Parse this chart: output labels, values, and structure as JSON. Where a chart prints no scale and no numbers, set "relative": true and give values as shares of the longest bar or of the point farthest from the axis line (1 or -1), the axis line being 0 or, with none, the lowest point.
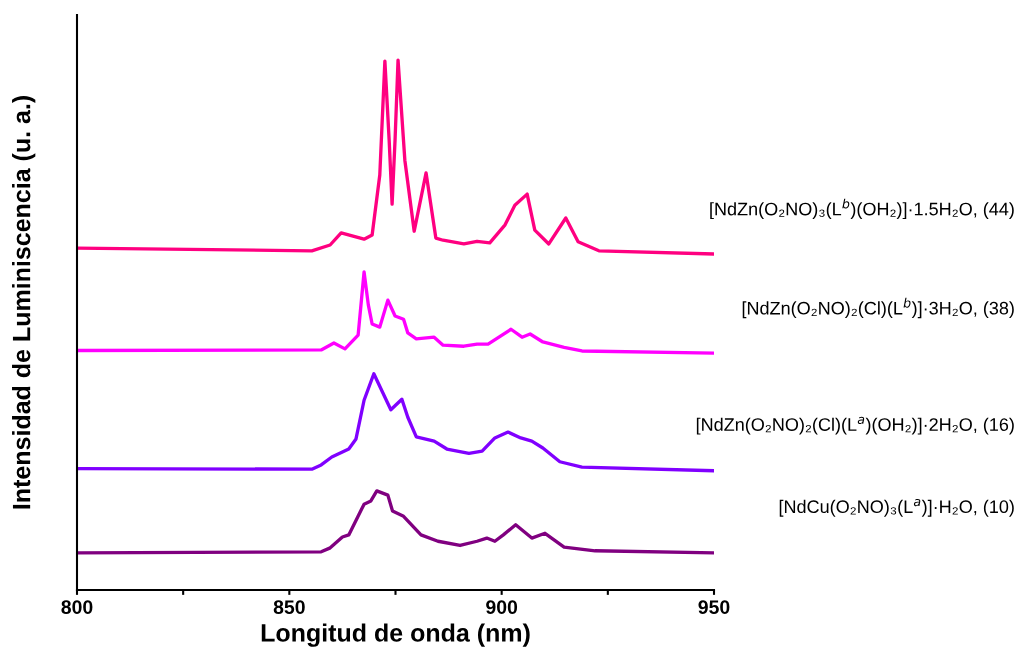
{
  "chart_data": {
    "type": "line",
    "relative": true,
    "xlabel": "Longitud de onda (nm)",
    "ylabel": "Intensidad de Luminiscencia (u. a.)",
    "xlim": [
      800,
      950
    ],
    "xticks": [
      800,
      {
        "value": 825,
        "label": null
      },
      850,
      {
        "value": 875,
        "label": null
      },
      900,
      {
        "value": 925,
        "label": null
      },
      950
    ],
    "tick_labels": "x",
    "grid": false,
    "legend": false,
    "marker": "none",
    "line_style": "solid",
    "series": [
      {
        "name": "[NdZn(O₂NO)₃(L$^{b}$)(OH₂)]·1.5H₂O, (44)",
        "color": "#ff0080",
        "x": [
          800,
          855.3,
          859.6,
          862.2,
          867.6,
          869.5,
          871.3,
          872.5,
          873.5,
          874.2,
          874.9,
          875.6,
          877.2,
          879.4,
          882.2,
          884.5,
          886.2,
          891.1,
          894.2,
          897.2,
          900.8,
          903.1,
          906.0,
          907.8,
          911.1,
          915.1,
          918.0,
          922.9,
          950
        ],
        "values": [
          0.645,
          0.64,
          0.651,
          0.674,
          0.662,
          0.67,
          0.783,
          0.998,
          0.85,
          0.728,
          0.85,
          1,
          0.811,
          0.677,
          0.787,
          0.664,
          0.66,
          0.653,
          0.658,
          0.655,
          0.689,
          0.726,
          0.747,
          0.679,
          0.653,
          0.702,
          0.657,
          0.64,
          0.634
        ]
      },
      {
        "name": "[NdZn(O₂NO)₂(Cl)(L$^{b}$)]·3H₂O, (38)",
        "color": "#ff00ff",
        "x": [
          800,
          857.5,
          860.5,
          863.1,
          866.2,
          867.6,
          868.6,
          869.5,
          871.3,
          873.2,
          874.9,
          876.9,
          877.9,
          879.9,
          884.1,
          886.2,
          891.1,
          894.2,
          896.8,
          902.2,
          904.8,
          906.7,
          909.7,
          914.7,
          918.9,
          950
        ],
        "values": [
          0.452,
          0.453,
          0.466,
          0.455,
          0.481,
          0.6,
          0.538,
          0.502,
          0.496,
          0.547,
          0.517,
          0.511,
          0.485,
          0.474,
          0.477,
          0.462,
          0.46,
          0.464,
          0.464,
          0.492,
          0.477,
          0.483,
          0.468,
          0.458,
          0.451,
          0.447
        ]
      },
      {
        "name": "[NdZn(O₂NO)₂(Cl)(L$^{a}$)(OH₂)]·2H₂O, (16)",
        "color": "#8000ff",
        "x": [
          800,
          855.3,
          857.5,
          860.0,
          864.0,
          865.7,
          867.6,
          869.9,
          873.9,
          876.5,
          877.9,
          879.9,
          884.1,
          887.1,
          892.3,
          895.4,
          898.4,
          901.5,
          904.5,
          907.1,
          909.7,
          913.7,
          918.9,
          950
        ],
        "values": [
          0.229,
          0.228,
          0.236,
          0.251,
          0.266,
          0.285,
          0.358,
          0.408,
          0.34,
          0.36,
          0.326,
          0.289,
          0.281,
          0.266,
          0.258,
          0.262,
          0.287,
          0.298,
          0.287,
          0.281,
          0.268,
          0.242,
          0.232,
          0.225
        ]
      },
      {
        "name": "[NdCu(O₂NO)₃(L$^{a}$)]·H₂O, (10)",
        "color": "#800080",
        "x": [
          800,
          857.5,
          859.5,
          862.5,
          864.0,
          867.6,
          869.2,
          870.6,
          873.2,
          874.3,
          876.9,
          881.0,
          885.0,
          890.2,
          894.2,
          896.5,
          898.4,
          900.4,
          903.3,
          907.1,
          910.2,
          914.7,
          922.0,
          950
        ],
        "values": [
          0.07,
          0.072,
          0.079,
          0.1,
          0.104,
          0.162,
          0.168,
          0.187,
          0.179,
          0.149,
          0.139,
          0.104,
          0.092,
          0.084,
          0.092,
          0.098,
          0.092,
          0.104,
          0.123,
          0.098,
          0.107,
          0.081,
          0.074,
          0.07
        ]
      }
    ]
  }
}
